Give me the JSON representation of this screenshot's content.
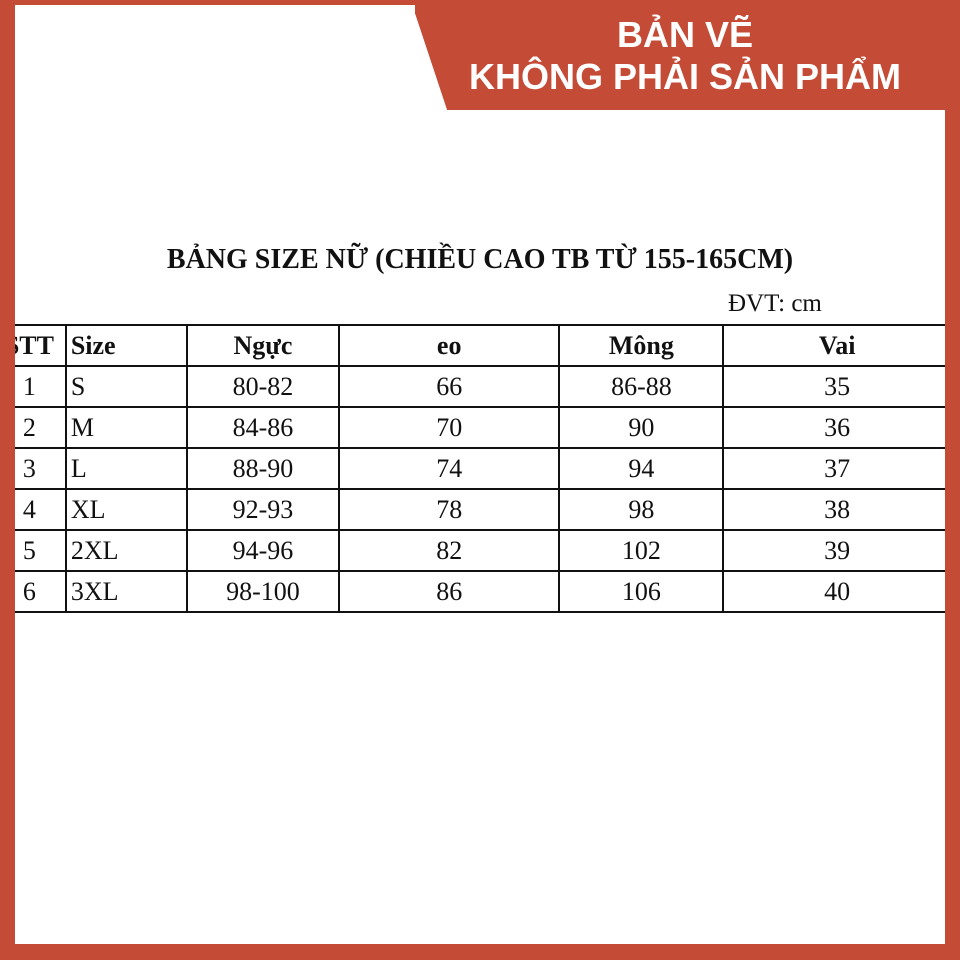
{
  "banner": {
    "line1": "BẢN VẼ",
    "line2": "KHÔNG PHẢI SẢN PHẨM",
    "color": "#c44b36"
  },
  "title": "BẢNG SIZE NỮ (CHIỀU CAO TB TỪ 155-165CM)",
  "unit": "ĐVT: cm",
  "table": {
    "headers": [
      "STT",
      "Size",
      "Ngực",
      "eo",
      "Mông",
      "Vai"
    ],
    "rows": [
      [
        "1",
        "S",
        "80-82",
        "66",
        "86-88",
        "35"
      ],
      [
        "2",
        "M",
        "84-86",
        "70",
        "90",
        "36"
      ],
      [
        "3",
        "L",
        "88-90",
        "74",
        "94",
        "37"
      ],
      [
        "4",
        "XL",
        "92-93",
        "78",
        "98",
        "38"
      ],
      [
        "5",
        "2XL",
        "94-96",
        "82",
        "102",
        "39"
      ],
      [
        "6",
        "3XL",
        "98-100",
        "86",
        "106",
        "40"
      ]
    ]
  }
}
